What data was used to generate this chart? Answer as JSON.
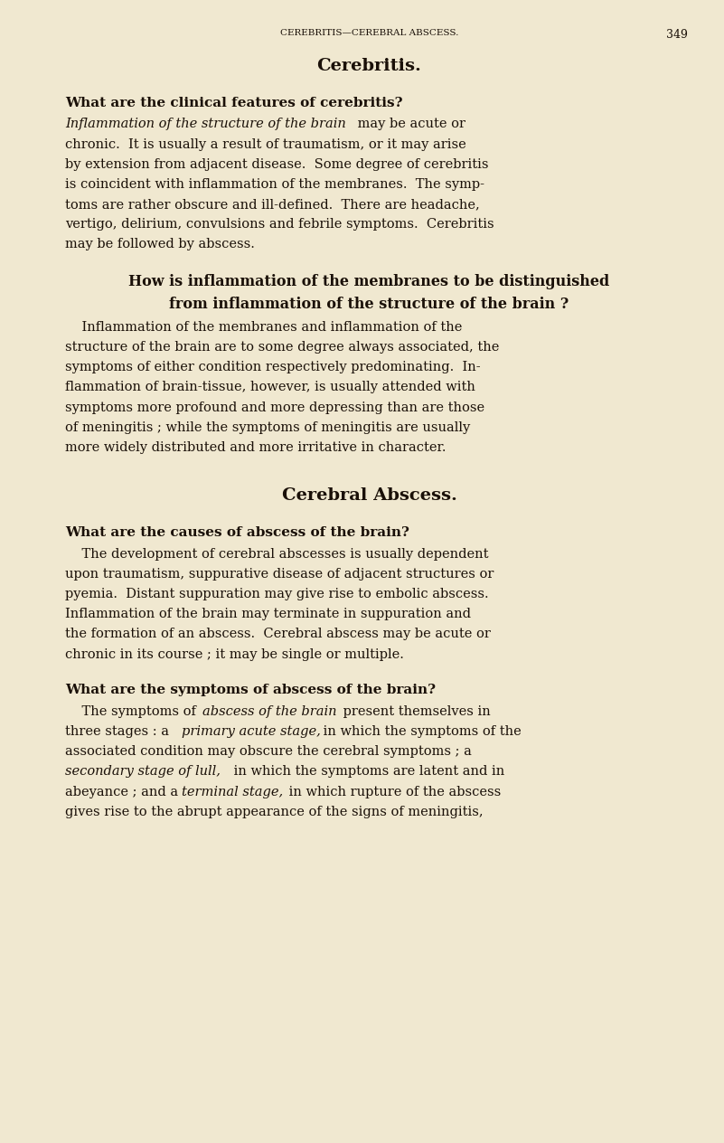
{
  "bg_color": "#f0e8d0",
  "text_color": "#1a1008",
  "page_width": 8.01,
  "page_height": 12.64,
  "header_text": "CEREBRITIS—CEREBRAL ABSCESS.",
  "page_number": "349",
  "section1_title": "Cerebritis.",
  "q1_heading": "What are the clinical features of cerebritis?",
  "q2_heading_line1": "How is inflammation of the membranes to be distinguished",
  "q2_heading_line2": "from inflammation of the structure of the brain ?",
  "section2_title": "Cerebral Abscess.",
  "q3_heading": "What are the causes of abscess of the brain?",
  "q4_heading": "What are the symptoms of abscess of the brain?"
}
